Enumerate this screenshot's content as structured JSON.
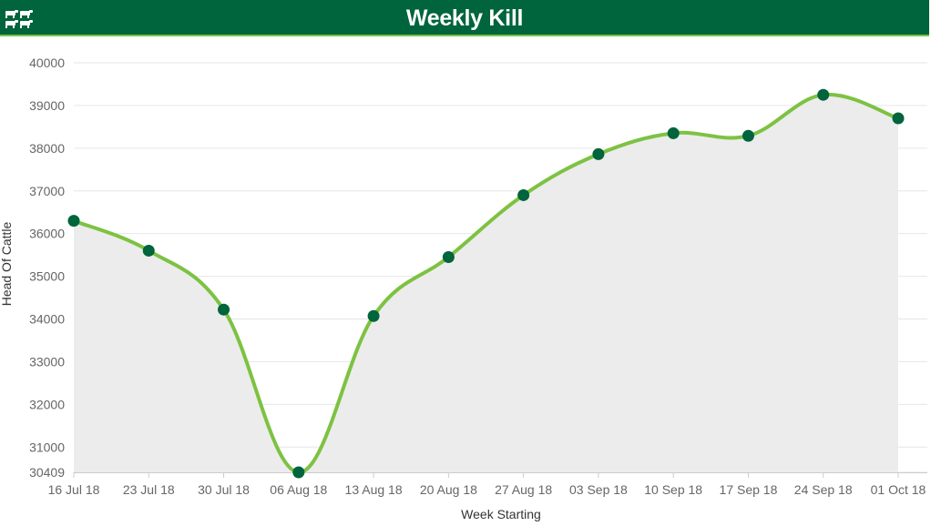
{
  "header": {
    "title": "Weekly Kill",
    "icon": "cattle-icon",
    "background_color": "#00643c",
    "accent_color": "#7dc242"
  },
  "chart_data": {
    "type": "area",
    "title": "Weekly Kill",
    "xlabel": "Week Starting",
    "ylabel": "Head Of Cattle",
    "categories": [
      "16 Jul 18",
      "23 Jul 18",
      "30 Jul 18",
      "06 Aug 18",
      "13 Aug 18",
      "20 Aug 18",
      "27 Aug 18",
      "03 Sep 18",
      "10 Sep 18",
      "17 Sep 18",
      "24 Sep 18",
      "01 Oct 18"
    ],
    "values": [
      36300,
      35600,
      34220,
      30409,
      34070,
      35450,
      36900,
      37860,
      38350,
      38290,
      39250,
      38700
    ],
    "ylim": [
      30409,
      40000
    ],
    "yticks": [
      30409,
      31000,
      32000,
      33000,
      34000,
      35000,
      36000,
      37000,
      38000,
      39000,
      40000
    ],
    "grid": true,
    "line_color": "#7dc242",
    "marker_color": "#00643c",
    "fill_color": "#ececec"
  }
}
